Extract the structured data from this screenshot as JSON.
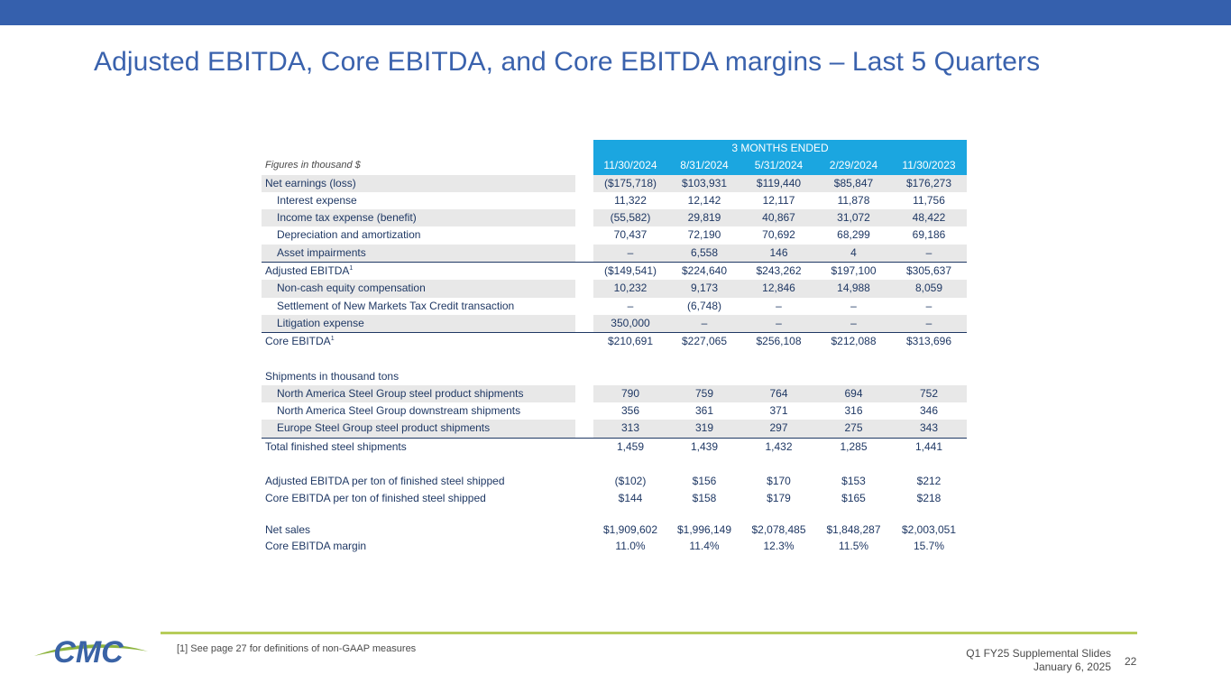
{
  "title": "Adjusted EBITDA, Core EBITDA, and Core EBITDA margins – Last 5 Quarters",
  "table": {
    "banner": "3 MONTHS ENDED",
    "header_label": "Figures in thousand $",
    "columns": [
      "11/30/2024",
      "8/31/2024",
      "5/31/2024",
      "2/29/2024",
      "11/30/2023"
    ],
    "rows": [
      {
        "label": "Net earnings (loss)",
        "values": [
          "($175,718)",
          "$103,931",
          "$119,440",
          "$85,847",
          "$176,273"
        ]
      },
      {
        "label": "Interest expense",
        "values": [
          "11,322",
          "12,142",
          "12,117",
          "11,878",
          "11,756"
        ]
      },
      {
        "label": "Income tax expense (benefit)",
        "values": [
          "(55,582)",
          "29,819",
          "40,867",
          "31,072",
          "48,422"
        ]
      },
      {
        "label": "Depreciation and amortization",
        "values": [
          "70,437",
          "72,190",
          "70,692",
          "68,299",
          "69,186"
        ]
      },
      {
        "label": "Asset impairments",
        "values": [
          "–",
          "6,558",
          "146",
          "4",
          "–"
        ]
      },
      {
        "label": "Adjusted EBITDA",
        "sup": "1",
        "values": [
          "($149,541)",
          "$224,640",
          "$243,262",
          "$197,100",
          "$305,637"
        ]
      },
      {
        "label": "Non-cash equity compensation",
        "values": [
          "10,232",
          "9,173",
          "12,846",
          "14,988",
          "8,059"
        ]
      },
      {
        "label": "Settlement of New Markets Tax Credit transaction",
        "values": [
          "–",
          "(6,748)",
          "–",
          "–",
          "–"
        ]
      },
      {
        "label": "Litigation expense",
        "values": [
          "350,000",
          "–",
          "–",
          "–",
          "–"
        ]
      },
      {
        "label": "Core EBITDA",
        "sup": "1",
        "values": [
          "$210,691",
          "$227,065",
          "$256,108",
          "$212,088",
          "$313,696"
        ]
      },
      {
        "label": "Shipments in thousand tons"
      },
      {
        "label": "North America Steel Group steel product shipments",
        "values": [
          "790",
          "759",
          "764",
          "694",
          "752"
        ]
      },
      {
        "label": "North America Steel Group downstream shipments",
        "values": [
          "356",
          "361",
          "371",
          "316",
          "346"
        ]
      },
      {
        "label": "Europe Steel Group steel product shipments",
        "values": [
          "313",
          "319",
          "297",
          "275",
          "343"
        ]
      },
      {
        "label": "Total finished steel shipments",
        "values": [
          "1,459",
          "1,439",
          "1,432",
          "1,285",
          "1,441"
        ]
      },
      {
        "label": "Adjusted EBITDA per ton of finished steel shipped",
        "values": [
          "($102)",
          "$156",
          "$170",
          "$153",
          "$212"
        ]
      },
      {
        "label": "Core EBITDA per ton of finished steel shipped",
        "values": [
          "$144",
          "$158",
          "$179",
          "$165",
          "$218"
        ]
      },
      {
        "label": "Net sales",
        "values": [
          "$1,909,602",
          "$1,996,149",
          "$2,078,485",
          "$1,848,287",
          "$2,003,051"
        ]
      },
      {
        "label": "Core EBITDA margin",
        "values": [
          "11.0%",
          "11.4%",
          "12.3%",
          "11.5%",
          "15.7%"
        ]
      }
    ]
  },
  "footer": {
    "footnote": "[1] See page 27 for definitions of non-GAAP measures",
    "deck_title": "Q1 FY25 Supplemental Slides",
    "deck_date": "January 6, 2025",
    "page_number": "22",
    "logo_text": "CMC"
  },
  "colors": {
    "top_bar": "#3560ad",
    "title": "#3a62ad",
    "header_fill": "#1ba6e0",
    "row_shade": "#e8e8e8",
    "rule": "#b7cc5a",
    "logo_blue": "#3a63a6",
    "logo_green": "#8db43e"
  }
}
